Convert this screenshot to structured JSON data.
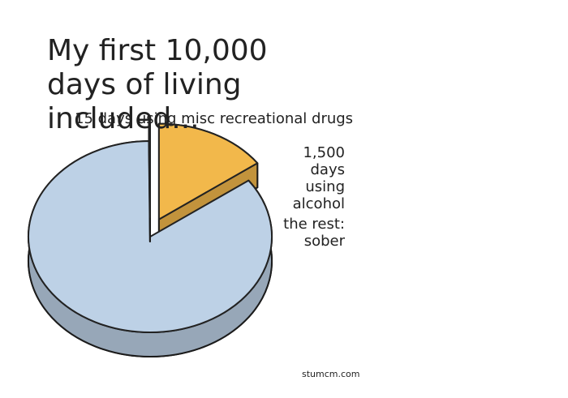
{
  "chart_data": {
    "type": "pie",
    "title": "My first 10,000 days of living included...",
    "categories": [
      "1,500 days using alcohol",
      "the rest: sober",
      "15 days using misc recreational drugs"
    ],
    "values": [
      1500,
      8485,
      15
    ],
    "colors": [
      "#f2b84b",
      "#bdd1e6",
      "#7a3e8a"
    ],
    "credit": "stumcm.com"
  }
}
